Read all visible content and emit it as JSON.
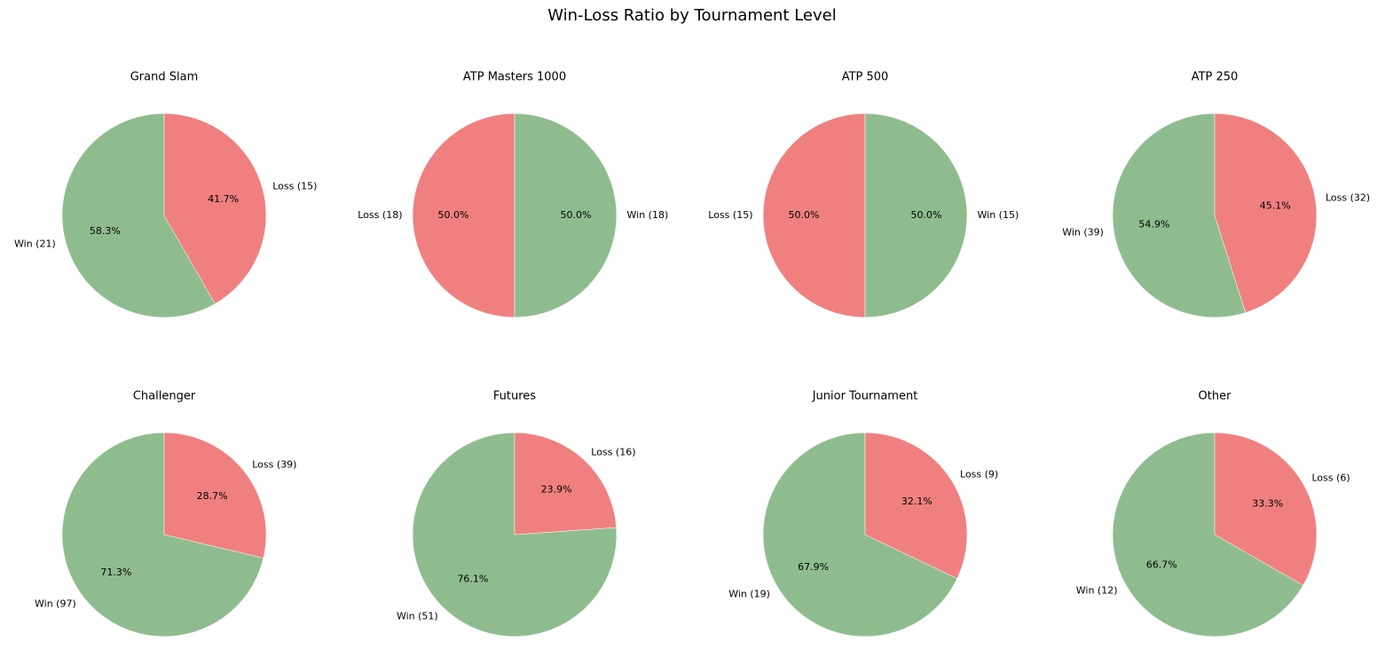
{
  "title": "Win-Loss Ratio by Tournament Level",
  "chart_data": [
    {
      "type": "pie",
      "title": "Grand Slam",
      "categories": [
        "Win (21)",
        "Loss (15)"
      ],
      "values": [
        58.3,
        41.7
      ],
      "value_labels": [
        "58.3%",
        "41.7%"
      ],
      "colors": [
        "#8fbc8f",
        "#f08080"
      ]
    },
    {
      "type": "pie",
      "title": "ATP Masters 1000",
      "categories": [
        "Loss (18)",
        "Win (18)"
      ],
      "values": [
        50,
        50
      ],
      "value_labels": [
        "50.0%",
        "50.0%"
      ],
      "colors": [
        "#f08080",
        "#8fbc8f"
      ]
    },
    {
      "type": "pie",
      "title": "ATP 500",
      "categories": [
        "Loss (15)",
        "Win (15)"
      ],
      "values": [
        50,
        50
      ],
      "value_labels": [
        "50.0%",
        "50.0%"
      ],
      "colors": [
        "#f08080",
        "#8fbc8f"
      ]
    },
    {
      "type": "pie",
      "title": "ATP 250",
      "categories": [
        "Win (39)",
        "Loss (32)"
      ],
      "values": [
        54.9,
        45.1
      ],
      "value_labels": [
        "54.9%",
        "45.1%"
      ],
      "colors": [
        "#8fbc8f",
        "#f08080"
      ]
    },
    {
      "type": "pie",
      "title": "Challenger",
      "categories": [
        "Win (97)",
        "Loss (39)"
      ],
      "values": [
        71.3,
        28.7
      ],
      "value_labels": [
        "71.3%",
        "28.7%"
      ],
      "colors": [
        "#8fbc8f",
        "#f08080"
      ]
    },
    {
      "type": "pie",
      "title": "Futures",
      "categories": [
        "Win (51)",
        "Loss (16)"
      ],
      "values": [
        76.1,
        23.9
      ],
      "value_labels": [
        "76.1%",
        "23.9%"
      ],
      "colors": [
        "#8fbc8f",
        "#f08080"
      ]
    },
    {
      "type": "pie",
      "title": "Junior Tournament",
      "categories": [
        "Win (19)",
        "Loss (9)"
      ],
      "values": [
        67.9,
        32.1
      ],
      "value_labels": [
        "67.9%",
        "32.1%"
      ],
      "colors": [
        "#8fbc8f",
        "#f08080"
      ]
    },
    {
      "type": "pie",
      "title": "Other",
      "categories": [
        "Win (12)",
        "Loss (6)"
      ],
      "values": [
        66.7,
        33.3
      ],
      "value_labels": [
        "66.7%",
        "33.3%"
      ],
      "colors": [
        "#8fbc8f",
        "#f08080"
      ]
    }
  ]
}
